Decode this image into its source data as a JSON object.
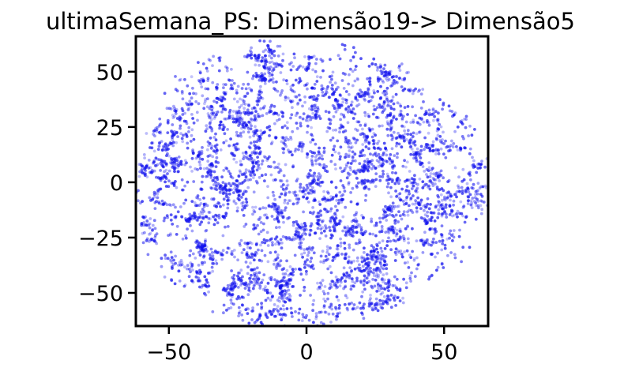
{
  "chart_data": {
    "type": "scatter",
    "title": "ultimaSemana_PS: Dimensão19-> Dimensão5",
    "xlabel": "",
    "ylabel": "",
    "xlim": [
      -62,
      66
    ],
    "ylim": [
      -65,
      66
    ],
    "x_ticks": [
      {
        "value": -50,
        "label": "−50"
      },
      {
        "value": 0,
        "label": "0"
      },
      {
        "value": 50,
        "label": "50"
      }
    ],
    "y_ticks": [
      {
        "value": 50,
        "label": "50"
      },
      {
        "value": 25,
        "label": "25"
      },
      {
        "value": 0,
        "label": "0"
      },
      {
        "value": -25,
        "label": "−25"
      },
      {
        "value": -50,
        "label": "−50"
      }
    ],
    "grid": false,
    "legend": "none",
    "point_color": "#1010ee",
    "point_count": 4200,
    "distribution_note": "dense cloud of points filling a roughly circular region of radius about 65 centered near (0,0), with small clustered strands and gaps"
  }
}
